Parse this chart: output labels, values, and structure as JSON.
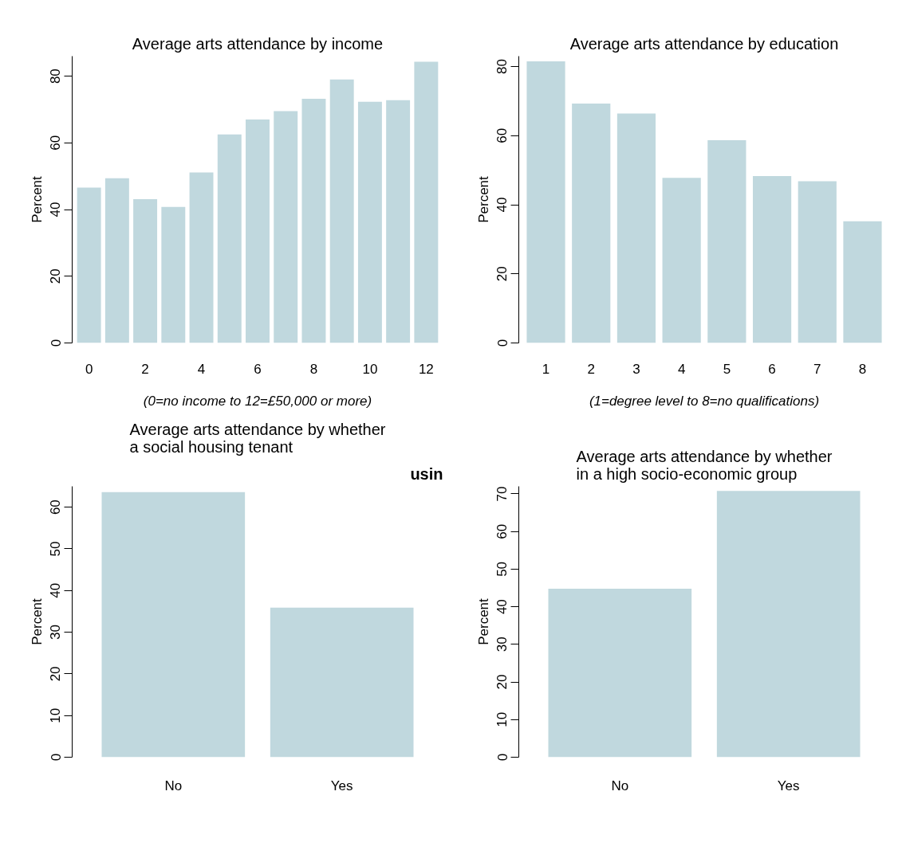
{
  "chart_data": [
    {
      "type": "bar",
      "title": "Average arts attendance by income",
      "ylabel": "Percent",
      "xlabel": "(0=no income to 12=£50,000 or more)",
      "categories": [
        "0",
        null,
        "2",
        null,
        "4",
        null,
        "6",
        null,
        "8",
        null,
        "10",
        null,
        "12"
      ],
      "values": [
        46.6,
        49.4,
        43.1,
        40.8,
        51.1,
        62.5,
        67.0,
        69.5,
        73.2,
        79.0,
        72.3,
        72.8,
        84.3
      ],
      "color": "#c0d8de",
      "ylim": [
        0,
        86
      ],
      "yticks": [
        0,
        20,
        40,
        60,
        80
      ],
      "grid": false
    },
    {
      "type": "bar",
      "title": "Average arts attendance by education",
      "ylabel": "Percent",
      "xlabel": "(1=degree level to 8=no qualifications)",
      "categories": [
        "1",
        "2",
        "3",
        "4",
        "5",
        "6",
        "7",
        "8"
      ],
      "values": [
        81.5,
        69.3,
        66.4,
        47.8,
        58.7,
        48.3,
        46.8,
        35.2
      ],
      "color": "#c0d8de",
      "ylim": [
        0,
        83
      ],
      "yticks": [
        0,
        20,
        40,
        60,
        80
      ],
      "grid": false
    },
    {
      "type": "bar",
      "title": "Average arts attendance by whether\na social housing tenant",
      "ylabel": "Percent",
      "categories": [
        "No",
        "Yes"
      ],
      "values": [
        63.6,
        35.9
      ],
      "color": "#c0d8de",
      "ylim": [
        0,
        65
      ],
      "yticks": [
        0,
        10,
        20,
        30,
        40,
        50,
        60
      ],
      "grid": false,
      "annotations": [
        "usin"
      ]
    },
    {
      "type": "bar",
      "title": "Average arts attendance by whether\nin a high socio-economic group",
      "ylabel": "Percent",
      "categories": [
        "No",
        "Yes"
      ],
      "values": [
        44.8,
        70.8
      ],
      "color": "#c0d8de",
      "ylim": [
        0,
        72
      ],
      "yticks": [
        0,
        10,
        20,
        30,
        40,
        50,
        60,
        70
      ],
      "grid": false
    }
  ]
}
